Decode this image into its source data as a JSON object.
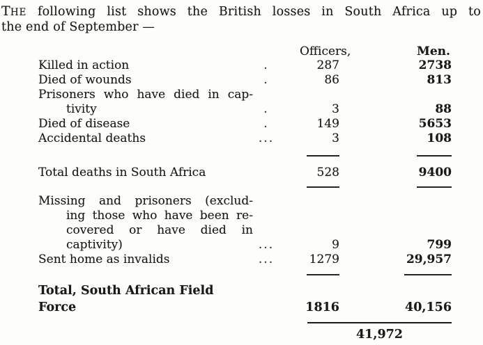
{
  "intro": {
    "lead_cap": "T",
    "lead_small": "HE",
    "line1_rest": "following list shows the British losses in South Africa up to",
    "line2": "the end of September —"
  },
  "table": {
    "headers": {
      "officers": "Officers,",
      "men": "Men."
    },
    "rows": [
      {
        "kind": "item",
        "lines": [
          "Killed in action"
        ],
        "leader": ".",
        "officers": "287",
        "men": "2738"
      },
      {
        "kind": "item",
        "lines": [
          "Died of wounds"
        ],
        "leader": ".",
        "officers": "86",
        "men": "813"
      },
      {
        "kind": "item",
        "lines": [
          "Prisoners who have died in cap-",
          "tivity"
        ],
        "leader": ".",
        "officers": "3",
        "men": "88"
      },
      {
        "kind": "item",
        "lines": [
          "Died of disease"
        ],
        "leader": ".",
        "officers": "149",
        "men": "5653"
      },
      {
        "kind": "item",
        "lines": [
          "Accidental deaths"
        ],
        "leader": "...",
        "officers": "3",
        "men": "108"
      },
      {
        "kind": "rule",
        "variant": "a"
      },
      {
        "kind": "item",
        "lines": [
          "Total deaths in South Africa"
        ],
        "leader": "",
        "officers": "528",
        "men": "9400"
      },
      {
        "kind": "rule",
        "variant": "b"
      },
      {
        "kind": "item",
        "lines": [
          "Missing and prisoners (exclud-",
          "ing those who have been re-",
          "covered or have died in",
          "captivity)"
        ],
        "leader": "...",
        "officers": "9",
        "men": "799"
      },
      {
        "kind": "item",
        "lines": [
          "Sent home as invalids"
        ],
        "leader": "...",
        "officers": "1279",
        "men": "29,957"
      },
      {
        "kind": "rule",
        "variant": "c"
      },
      {
        "kind": "item",
        "emph": true,
        "lines": [
          "Total, South African Field Force"
        ],
        "leader": "",
        "officers": "1816",
        "men": "40,156"
      },
      {
        "kind": "longrule"
      },
      {
        "kind": "grand",
        "value": "41,972"
      }
    ]
  }
}
